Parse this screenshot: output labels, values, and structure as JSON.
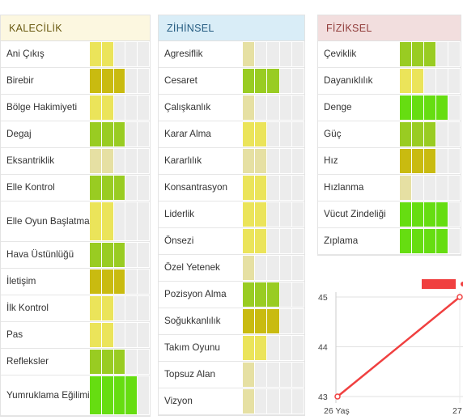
{
  "level_colors": {
    "1": "#e6e0a3",
    "2": "#ebe45a",
    "3": "#c9bb10",
    "4": "#99cc22",
    "5": "#66dd11"
  },
  "panels": [
    {
      "id": "kalecilik",
      "title": "KALECİLİK",
      "rows": [
        {
          "label": "Ani Çıkış",
          "level": 2,
          "filled": 2
        },
        {
          "label": "Birebir",
          "level": 3,
          "filled": 3
        },
        {
          "label": "Bölge Hakimiyeti",
          "level": 2,
          "filled": 2
        },
        {
          "label": "Degaj",
          "level": 4,
          "filled": 3
        },
        {
          "label": "Eksantriklik",
          "level": 1,
          "filled": 2
        },
        {
          "label": "Elle Kontrol",
          "level": 4,
          "filled": 3
        },
        {
          "label": "Elle Oyun Başlatma",
          "level": 2,
          "filled": 2,
          "tall": true
        },
        {
          "label": "Hava Üstünlüğü",
          "level": 4,
          "filled": 3
        },
        {
          "label": "İletişim",
          "level": 3,
          "filled": 3
        },
        {
          "label": "İlk Kontrol",
          "level": 2,
          "filled": 2
        },
        {
          "label": "Pas",
          "level": 2,
          "filled": 2
        },
        {
          "label": "Refleksler",
          "level": 4,
          "filled": 3
        },
        {
          "label": "Yumruklama Eğilimi",
          "level": 5,
          "filled": 4,
          "tall": true
        }
      ]
    },
    {
      "id": "zihinsel",
      "title": "ZİHİNSEL",
      "rows": [
        {
          "label": "Agresiflik",
          "level": 1,
          "filled": 1
        },
        {
          "label": "Cesaret",
          "level": 4,
          "filled": 3
        },
        {
          "label": "Çalışkanlık",
          "level": 1,
          "filled": 1
        },
        {
          "label": "Karar Alma",
          "level": 2,
          "filled": 2
        },
        {
          "label": "Kararlılık",
          "level": 1,
          "filled": 2
        },
        {
          "label": "Konsantrasyon",
          "level": 2,
          "filled": 2
        },
        {
          "label": "Liderlik",
          "level": 2,
          "filled": 2
        },
        {
          "label": "Önsezi",
          "level": 2,
          "filled": 2
        },
        {
          "label": "Özel Yetenek",
          "level": 1,
          "filled": 1
        },
        {
          "label": "Pozisyon Alma",
          "level": 4,
          "filled": 3
        },
        {
          "label": "Soğukkanlılık",
          "level": 3,
          "filled": 3
        },
        {
          "label": "Takım Oyunu",
          "level": 2,
          "filled": 2
        },
        {
          "label": "Topsuz Alan",
          "level": 1,
          "filled": 1
        },
        {
          "label": "Vizyon",
          "level": 1,
          "filled": 1
        }
      ]
    },
    {
      "id": "fiziksel",
      "title": "FİZİKSEL",
      "rows": [
        {
          "label": "Çeviklik",
          "level": 4,
          "filled": 3
        },
        {
          "label": "Dayanıklılık",
          "level": 2,
          "filled": 2
        },
        {
          "label": "Denge",
          "level": 5,
          "filled": 4
        },
        {
          "label": "Güç",
          "level": 4,
          "filled": 3
        },
        {
          "label": "Hız",
          "level": 3,
          "filled": 3
        },
        {
          "label": "Hızlanma",
          "level": 1,
          "filled": 1
        },
        {
          "label": "Vücut Zindeliği",
          "level": 5,
          "filled": 4
        },
        {
          "label": "Zıplama",
          "level": 5,
          "filled": 4
        }
      ]
    }
  ],
  "chart_data": {
    "type": "line",
    "x_tick_labels": [
      "26 Yaş",
      "27"
    ],
    "y_tick_labels": [
      "45",
      "44",
      "43"
    ],
    "ylim": [
      43,
      45
    ],
    "series": [
      {
        "color": "#f04040",
        "points": [
          {
            "x": 26,
            "y": 43
          },
          {
            "x": 27,
            "y": 45
          }
        ]
      }
    ],
    "legend_color": "#f04040"
  }
}
